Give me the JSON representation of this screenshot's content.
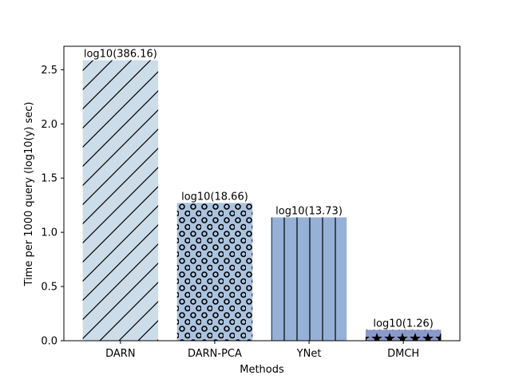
{
  "chart_data": {
    "type": "bar",
    "categories": [
      "DARN",
      "DARN-PCA",
      "YNet",
      "DMCH"
    ],
    "values": [
      2.5867,
      1.2709,
      1.1377,
      0.1004
    ],
    "bar_labels": [
      "log10(386.16)",
      "log10(18.66)",
      "log10(13.73)",
      "log10(1.26)"
    ],
    "bar_colors": [
      "#ccdce9",
      "#abc3df",
      "#96b1d7",
      "#8b99c9"
    ],
    "hatches": [
      "diagonal",
      "circles",
      "vertical",
      "stars"
    ],
    "title": "",
    "xlabel": "Methods",
    "ylabel": "Time per 1000 query (log10(y) sec)",
    "ylim": [
      0,
      2.716
    ],
    "yticks": [
      "0.0",
      "0.5",
      "1.0",
      "1.5",
      "2.0",
      "2.5"
    ],
    "ytick_values": [
      0,
      0.5,
      1.0,
      1.5,
      2.0,
      2.5
    ],
    "grid": false
  }
}
